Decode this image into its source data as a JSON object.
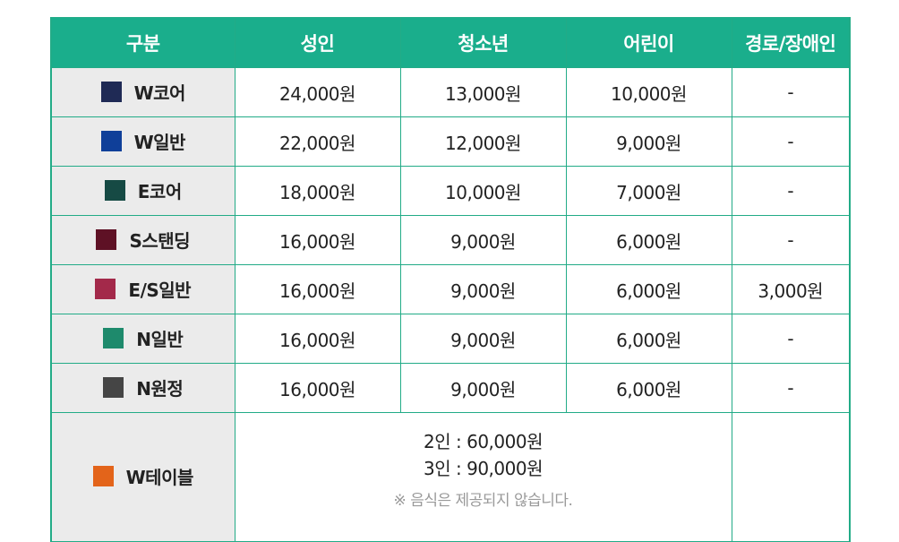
{
  "header": {
    "seat": "구분",
    "adult": "성인",
    "teen": "청소년",
    "child": "어린이",
    "senior": "경로/장애인"
  },
  "rows": [
    {
      "name": "W코어",
      "color": "#1f2a55",
      "adult": "24,000원",
      "teen": "13,000원",
      "child": "10,000원",
      "senior": "-"
    },
    {
      "name": "W일반",
      "color": "#0f3f99",
      "adult": "22,000원",
      "teen": "12,000원",
      "child": "9,000원",
      "senior": "-"
    },
    {
      "name": "E코어",
      "color": "#164a44",
      "adult": "18,000원",
      "teen": "10,000원",
      "child": "7,000원",
      "senior": "-"
    },
    {
      "name": "S스탠딩",
      "color": "#5e1125",
      "adult": "16,000원",
      "teen": "9,000원",
      "child": "6,000원",
      "senior": "-"
    },
    {
      "name": "E/S일반",
      "color": "#a3294a",
      "adult": "16,000원",
      "teen": "9,000원",
      "child": "6,000원",
      "senior": "3,000원"
    },
    {
      "name": "N일반",
      "color": "#1e8a6c",
      "adult": "16,000원",
      "teen": "9,000원",
      "child": "6,000원",
      "senior": "-"
    },
    {
      "name": "N원정",
      "color": "#454545",
      "adult": "16,000원",
      "teen": "9,000원",
      "child": "6,000원",
      "senior": "-"
    }
  ],
  "table_seat": {
    "name": "W테이블",
    "color": "#e3641a",
    "price_2": "2인 : 60,000원",
    "price_3": "3인 : 90,000원",
    "note": "※ 음식은 제공되지 않습니다."
  }
}
